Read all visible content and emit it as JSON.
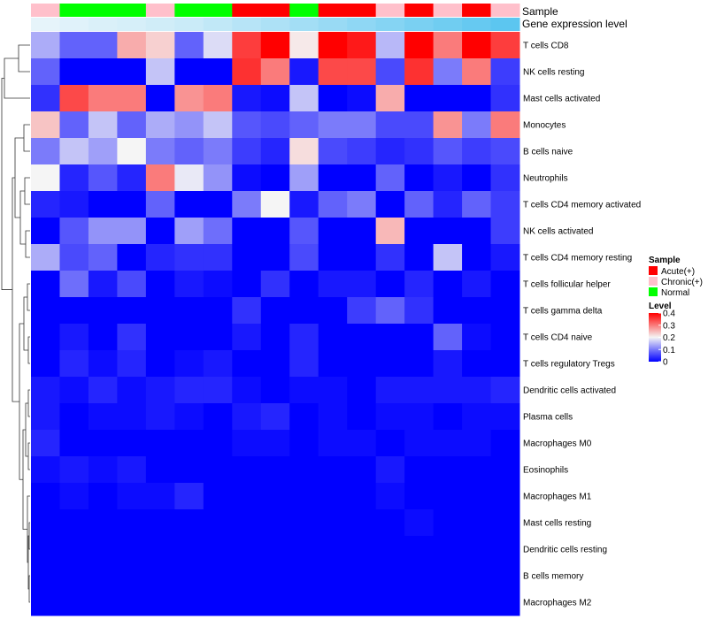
{
  "chart_data": {
    "type": "heatmap",
    "title": "",
    "annotation_tracks": [
      "Sample",
      "Gene expression level"
    ],
    "sample_groups": [
      "chronic",
      "normal",
      "normal",
      "normal",
      "chronic",
      "normal",
      "normal",
      "acute",
      "acute",
      "normal",
      "acute",
      "acute",
      "chronic",
      "acute",
      "chronic",
      "acute",
      "chronic"
    ],
    "gene_expression_level": [
      0.22,
      0.25,
      0.28,
      0.3,
      0.33,
      0.36,
      0.4,
      0.45,
      0.5,
      0.55,
      0.6,
      0.65,
      0.7,
      0.75,
      0.8,
      0.85,
      0.9
    ],
    "rows": [
      "T cells CD8",
      "NK cells resting",
      "Mast cells activated",
      "Monocytes",
      "B cells naive",
      "Neutrophils",
      "T cells CD4 memory activated",
      "NK cells activated",
      "T cells CD4 memory resting",
      "T cells follicular helper",
      "T cells gamma delta",
      "T cells CD4 naive",
      "T cells regulatory  Tregs",
      "Dendritic cells activated",
      "Plasma cells",
      "Macrophages M0",
      "Eosinophils",
      "Macrophages M1",
      "Mast cells resting",
      "Dendritic cells resting",
      "B cells memory",
      "Macrophages M2"
    ],
    "values": [
      [
        0.14,
        0.08,
        0.08,
        0.26,
        0.23,
        0.08,
        0.18,
        0.35,
        0.4,
        0.21,
        0.4,
        0.38,
        0.15,
        0.4,
        0.3,
        0.4,
        0.35
      ],
      [
        0.08,
        0.0,
        0.0,
        0.0,
        0.16,
        0.0,
        0.0,
        0.36,
        0.3,
        0.02,
        0.34,
        0.34,
        0.06,
        0.36,
        0.1,
        0.3,
        0.05
      ],
      [
        0.04,
        0.34,
        0.3,
        0.3,
        0.0,
        0.28,
        0.3,
        0.02,
        0.01,
        0.16,
        0.0,
        0.01,
        0.26,
        0.0,
        0.0,
        0.0,
        0.04
      ],
      [
        0.24,
        0.08,
        0.16,
        0.08,
        0.14,
        0.12,
        0.16,
        0.07,
        0.06,
        0.08,
        0.1,
        0.1,
        0.06,
        0.06,
        0.28,
        0.1,
        0.3
      ],
      [
        0.1,
        0.16,
        0.13,
        0.2,
        0.1,
        0.08,
        0.1,
        0.05,
        0.03,
        0.22,
        0.06,
        0.05,
        0.03,
        0.04,
        0.07,
        0.05,
        0.06
      ],
      [
        0.2,
        0.03,
        0.07,
        0.03,
        0.3,
        0.19,
        0.12,
        0.01,
        0.0,
        0.13,
        0.0,
        0.0,
        0.08,
        0.0,
        0.02,
        0.0,
        0.04
      ],
      [
        0.03,
        0.02,
        0.0,
        0.0,
        0.08,
        0.0,
        0.0,
        0.1,
        0.2,
        0.02,
        0.08,
        0.1,
        0.0,
        0.08,
        0.03,
        0.08,
        0.05
      ],
      [
        0.0,
        0.07,
        0.12,
        0.12,
        0.0,
        0.13,
        0.09,
        0.0,
        0.0,
        0.07,
        0.0,
        0.0,
        0.25,
        0.0,
        0.0,
        0.0,
        0.05
      ],
      [
        0.14,
        0.06,
        0.08,
        0.0,
        0.03,
        0.04,
        0.04,
        0.0,
        0.0,
        0.06,
        0.0,
        0.0,
        0.04,
        0.0,
        0.16,
        0.0,
        0.02
      ],
      [
        0.0,
        0.09,
        0.02,
        0.06,
        0.0,
        0.02,
        0.01,
        0.0,
        0.04,
        0.0,
        0.02,
        0.02,
        0.0,
        0.03,
        0.0,
        0.02,
        0.0
      ],
      [
        0.0,
        0.0,
        0.0,
        0.0,
        0.0,
        0.0,
        0.0,
        0.04,
        0.0,
        0.0,
        0.0,
        0.05,
        0.08,
        0.04,
        0.0,
        0.0,
        0.0
      ],
      [
        0.0,
        0.02,
        0.0,
        0.04,
        0.0,
        0.0,
        0.0,
        0.02,
        0.0,
        0.03,
        0.0,
        0.0,
        0.0,
        0.0,
        0.08,
        0.01,
        0.0
      ],
      [
        0.0,
        0.03,
        0.01,
        0.03,
        0.0,
        0.01,
        0.02,
        0.0,
        0.0,
        0.03,
        0.0,
        0.0,
        0.0,
        0.0,
        0.02,
        0.0,
        0.0
      ],
      [
        0.02,
        0.01,
        0.03,
        0.01,
        0.02,
        0.03,
        0.03,
        0.01,
        0.0,
        0.01,
        0.01,
        0.0,
        0.02,
        0.02,
        0.02,
        0.02,
        0.03
      ],
      [
        0.02,
        0.0,
        0.01,
        0.01,
        0.02,
        0.01,
        0.0,
        0.02,
        0.03,
        0.0,
        0.01,
        0.0,
        0.01,
        0.01,
        0.0,
        0.01,
        0.01
      ],
      [
        0.03,
        0.0,
        0.0,
        0.0,
        0.0,
        0.0,
        0.0,
        0.01,
        0.01,
        0.0,
        0.01,
        0.01,
        0.0,
        0.01,
        0.01,
        0.01,
        0.0
      ],
      [
        0.01,
        0.02,
        0.01,
        0.02,
        0.0,
        0.0,
        0.0,
        0.0,
        0.0,
        0.0,
        0.0,
        0.0,
        0.02,
        0.0,
        0.0,
        0.0,
        0.0
      ],
      [
        0.0,
        0.01,
        0.0,
        0.01,
        0.01,
        0.03,
        0.0,
        0.0,
        0.0,
        0.0,
        0.0,
        0.0,
        0.01,
        0.0,
        0.0,
        0.0,
        0.0
      ],
      [
        0.0,
        0.0,
        0.0,
        0.0,
        0.0,
        0.0,
        0.0,
        0.0,
        0.0,
        0.0,
        0.0,
        0.0,
        0.0,
        0.01,
        0.0,
        0.0,
        0.0
      ],
      [
        0.0,
        0.0,
        0.0,
        0.0,
        0.0,
        0.0,
        0.0,
        0.0,
        0.0,
        0.0,
        0.0,
        0.0,
        0.0,
        0.0,
        0.0,
        0.0,
        0.0
      ],
      [
        0.0,
        0.0,
        0.0,
        0.0,
        0.0,
        0.0,
        0.0,
        0.0,
        0.0,
        0.0,
        0.0,
        0.0,
        0.0,
        0.0,
        0.0,
        0.0,
        0.0
      ],
      [
        0.0,
        0.0,
        0.0,
        0.0,
        0.0,
        0.0,
        0.0,
        0.0,
        0.0,
        0.0,
        0.0,
        0.0,
        0.0,
        0.0,
        0.0,
        0.0,
        0.0
      ]
    ],
    "color_scale": {
      "low": "#0000FF",
      "mid": "#F5F5F5",
      "high": "#FF0000",
      "min": 0,
      "mid_value": 0.2,
      "max": 0.4
    },
    "legend": {
      "sample_title": "Sample",
      "sample_items": [
        {
          "key": "acute",
          "label": "Acute(+)",
          "color": "#FF0000"
        },
        {
          "key": "chronic",
          "label": "Chronic(+)",
          "color": "#FFC0CB"
        },
        {
          "key": "normal",
          "label": "Normal",
          "color": "#00FF00"
        }
      ],
      "level_title": "Level",
      "level_ticks": [
        {
          "label": "0.4",
          "value": 0.4
        },
        {
          "label": "0.3",
          "value": 0.3
        },
        {
          "label": "0.2",
          "value": 0.2
        },
        {
          "label": "0.1",
          "value": 0.1
        },
        {
          "label": "0",
          "value": 0.0
        }
      ]
    },
    "gene_level_colors": {
      "low": "#E6F4FA",
      "high": "#5CC6F0"
    },
    "dendrogram_side": "left",
    "legend_position": "right"
  }
}
